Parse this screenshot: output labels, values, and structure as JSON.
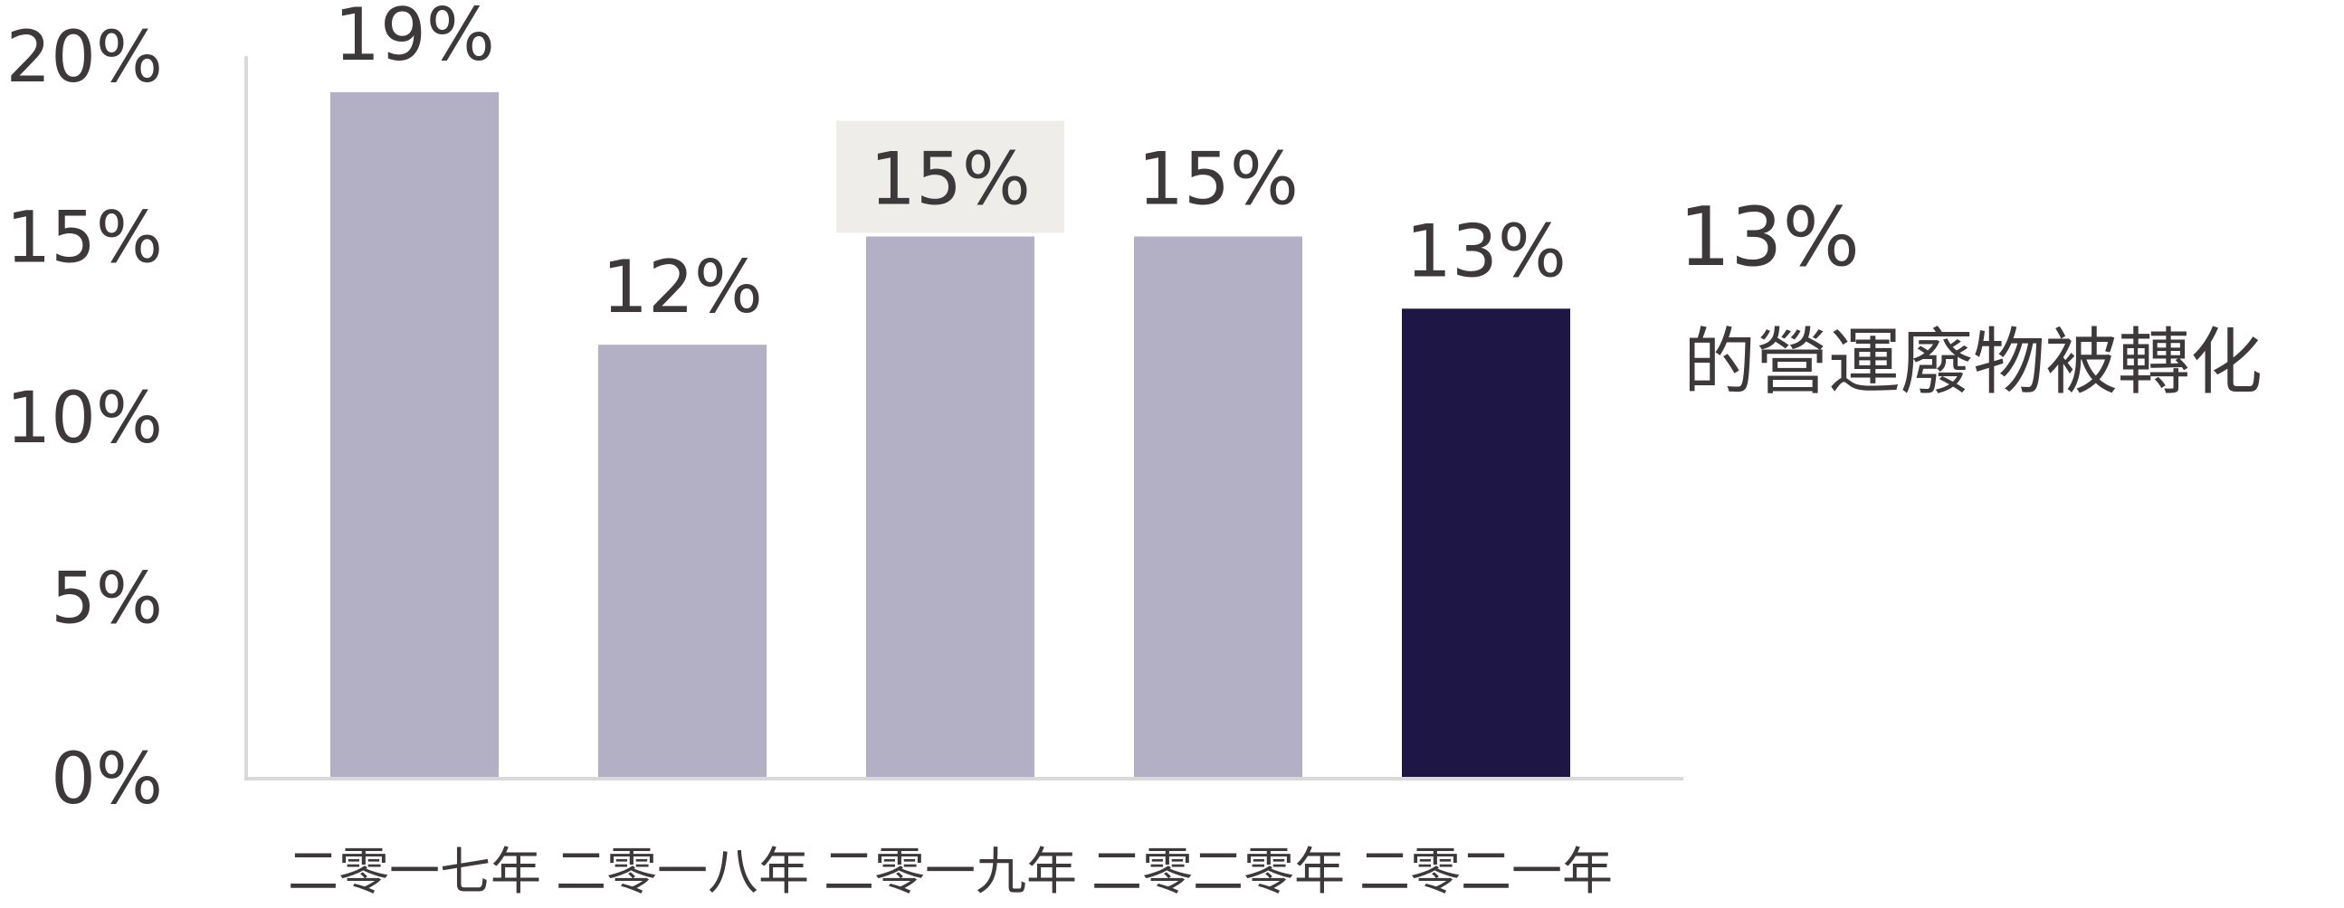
{
  "colors": {
    "bar_default": "#b3afc5",
    "bar_highlight": "#1e1645",
    "axis": "#d9d9d9",
    "text": "#3d393b",
    "label_box": "#efedea"
  },
  "chart_data": {
    "type": "bar",
    "title": "",
    "xlabel": "",
    "ylabel": "",
    "categories": [
      "二零一七年",
      "二零一八年",
      "二零一九年",
      "二零二零年",
      "二零二一年"
    ],
    "values": [
      19,
      12,
      15,
      15,
      13
    ],
    "data_labels": [
      "19%",
      "12%",
      "15%",
      "15%",
      "13%"
    ],
    "highlight_index": 4,
    "boxed_label_index": 2,
    "ylim": [
      0,
      20
    ],
    "yticks": [
      0,
      5,
      10,
      15,
      20
    ],
    "ytick_labels": [
      "0%",
      "5%",
      "10%",
      "15%",
      "20%"
    ],
    "grid": false,
    "legend": "none"
  },
  "callout": {
    "value": "13%",
    "text": "的營運廢物被轉化"
  }
}
